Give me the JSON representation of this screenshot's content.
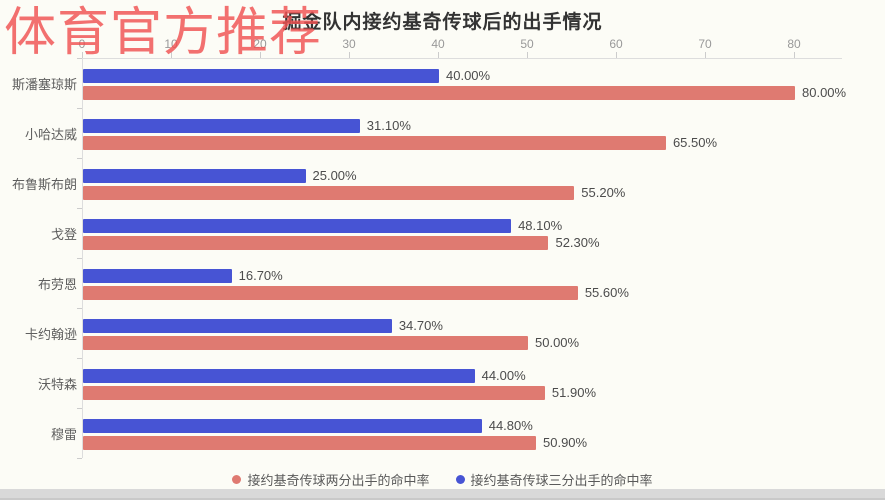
{
  "watermark": {
    "text": "体育官方推荐",
    "color": "#f15252"
  },
  "header": {
    "title": "掘金队内接约基奇传球后的出手情况"
  },
  "chart_data": {
    "type": "bar",
    "orientation": "horizontal",
    "title": "掘金队内接约基奇传球后的出手情况",
    "categories": [
      "斯潘塞琼斯",
      "小哈达威",
      "布鲁斯布朗",
      "戈登",
      "布劳恩",
      "卡约翰逊",
      "沃特森",
      "穆雷"
    ],
    "series": [
      {
        "name": "接约基奇传球三分出手的命中率",
        "color": "#4754d4",
        "position": "top",
        "values": [
          40.0,
          31.1,
          25.0,
          48.1,
          16.7,
          34.7,
          44.0,
          44.8
        ],
        "labels": [
          "40.00%",
          "31.10%",
          "25.00%",
          "48.10%",
          "16.70%",
          "34.70%",
          "44.00%",
          "44.80%"
        ]
      },
      {
        "name": "接约基奇传球两分出手的命中率",
        "color": "#df7a71",
        "position": "bottom",
        "values": [
          80.0,
          65.5,
          55.2,
          52.3,
          55.6,
          50.0,
          51.9,
          50.9
        ],
        "labels": [
          "80.00%",
          "65.50%",
          "55.20%",
          "52.30%",
          "55.60%",
          "50.00%",
          "51.90%",
          "50.90%"
        ]
      }
    ],
    "xlim": [
      0,
      80
    ],
    "x_ticks": [
      0,
      10,
      20,
      30,
      40,
      50,
      60,
      70,
      80
    ],
    "grid": false,
    "legend_position": "bottom"
  },
  "legend": {
    "items": [
      {
        "label": "接约基奇传球两分出手的命中率",
        "color": "#df7a71"
      },
      {
        "label": "接约基奇传球三分出手的命中率",
        "color": "#4754d4"
      }
    ]
  }
}
